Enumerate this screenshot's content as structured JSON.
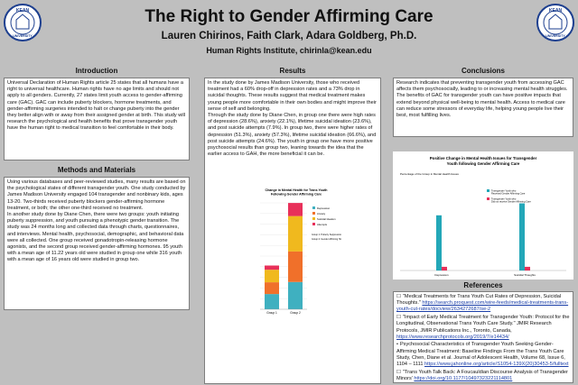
{
  "header": {
    "title": "The Right to Gender Affirming Care",
    "authors": "Lauren Chirinos,  Faith Clark, Adara Goldberg, Ph.D.",
    "institute": "Human Rights Institute, chirinla@kean.edu",
    "logo_text": "KEAN UNIVERSITY",
    "logo_year": "1855"
  },
  "intro": {
    "heading": "Introduction",
    "text": "Universal Declaration of Human Rights article 25 states that all humans have a right to universal healthcare. Human rights have no age limits and should not apply to all genders. Currently, 27 states limit youth access to gender-affirming care (GAC). GAC can include puberty blockers, hormone treatments, and gender-affirming surgeries intended to halt or change puberty into the gender they better align with or away from their assigned gender at birth. This study will research the psychological and health benefits that prove transgender youth have the human right to medical transition to feel comfortable in their body."
  },
  "methods": {
    "heading": "Methods and Materials",
    "p1": "Using various databases and peer-reviewed studies, many results are based on the psychological states of different transgender youth. One study conducted by James Madison University engaged 104 transgender and nonbinary kids, ages 13-20. Two-thirds received puberty blockers gender-affirming hormone treatment, or both; the other one-third received no treatment.",
    "p2": "In another study done by Diane Chen, there were two groups: youth initiating puberty suppression, and youth pursuing a phenotypic gender transition. The study was 24 months long and collected data through charts, questionnaires, and interviews. Mental health, psychosocial, demographic, and behavioral data were all collected. One group received gonadotropin-releasing hormone agonists, and the second group received gender-affirming hormones. 95 youth with a mean age of 11.22 years old were studied in group one while 316 youth with a mean age of 16 years old were studied in group two."
  },
  "results": {
    "heading": "Results",
    "p1": "In the study done by James Madison University, those who received treatment had a 60% drop-off in depression rates and a 73% drop in suicidal thoughts. These results suggest that medical treatment makes young people more comfortable in their own bodies and might improve their sense of self and belonging.",
    "p2": "Through the study done by Diane Chen, in group one there were high rates of depression (28.6%), anxiety (22.1%), lifetime suicidal ideation (23.6%), and post suicide attempts (7.9%). In group two, there were higher rates of depression (51.3%), anxiety (57.3%), lifetime suicidal ideation (66.6%), and post suicide attempts (24.6%). The youth in group one have more positive psychosocial results than group two, leaning towards the idea that the earlier access to GAH, the more beneficial it can be."
  },
  "conclusions": {
    "heading": "Conclusions",
    "text": "Research indicates that preventing transgender youth from accessing GAC affects them psychosocially, leading to or increasing mental health struggles. The benefits of GAC for transgender youth can have positive impacts that extend beyond physical well-being to mental health. Access to medical care can reduce some stressors of everyday life, helping young people live their best, most fulfilling lives."
  },
  "references": {
    "heading": "References",
    "items": [
      {
        "bullet": "☐",
        "text": "\"Medical Treatments for Trans Youth Cut Rates of Depression, Suicidal Thoughts.\"",
        "link": "https://search.proquest.com/wire-feeds/medical-treatments-trans-youth-cut-rates/docview/2634272687/se-2",
        "extra": ""
      },
      {
        "bullet": "☐",
        "text": "\"Impact of Early Medical Treatment for Transgender Youth: Protocol for the Longitudinal, Observational Trans Youth Care Study.\" JMIR Research Protocols, JMIR Publications Inc., Toronto, Canada,",
        "link": "https://www.researchprotocols.org/2019/7/e14434/",
        "extra": ""
      },
      {
        "bullet": "•",
        "text": "Psychosocial Characteristics of Transgender Youth Seeking Gender-Affirming Medical Treatment: Baseline Findings From the Trans Youth Care Study, Chen, Diane et al. Journal of Adolescent Health, Volume 68, Issue 6, 1104 – 1111",
        "link": "https://www.jahonline.org/article/S1054-139X(20)30453-5/fulltext",
        "extra": ""
      },
      {
        "bullet": "☐",
        "text": "\"Trans Youth Talk Back: A Foucauldian Discourse Analysis of Transgender Minors'",
        "link": "https://doi.org/10.1177/10497323221114801",
        "extra": ""
      }
    ]
  },
  "chart_stacked": {
    "chart_data": {
      "type": "bar",
      "title": "Change in Mental Health for Trans Youth Following Gender Affirming Care",
      "categories": [
        "Group 1",
        "Group 2"
      ],
      "series": [
        {
          "name": "Depression",
          "values": [
            28.6,
            51.3
          ],
          "color": "#3fb0c0"
        },
        {
          "name": "Anxiety",
          "values": [
            22.1,
            57.3
          ],
          "color": "#f0702a"
        },
        {
          "name": "Suicidal Ideation",
          "values": [
            23.6,
            66.6
          ],
          "color": "#f0b91e"
        },
        {
          "name": "Attempts",
          "values": [
            7.9,
            24.6
          ],
          "color": "#e8305a"
        }
      ],
      "ylim": [
        0,
        200
      ],
      "note": "Group 1: Puberty Suppression; Group 2: Gender Affirming Hormones"
    }
  },
  "chart_bar": {
    "chart_data": {
      "type": "bar",
      "title": "Positive Change in Mental Health Issues for Transgender Youth following Gender Affirming Care",
      "ylabel": "Percentage of the Group in Mental Health Issues",
      "categories": [
        "Depression",
        "Suicidal Thoughts"
      ],
      "series": [
        {
          "name": "Transgender Youth who Received Gender Affirming Care",
          "values": [
            60,
            73
          ],
          "color": "#23a7b8"
        },
        {
          "name": "Transgender Youth who Did not receive Gender Affirming Care",
          "values": [
            4,
            4
          ],
          "color": "#e8305a"
        }
      ],
      "ylim": [
        0,
        100
      ]
    }
  }
}
